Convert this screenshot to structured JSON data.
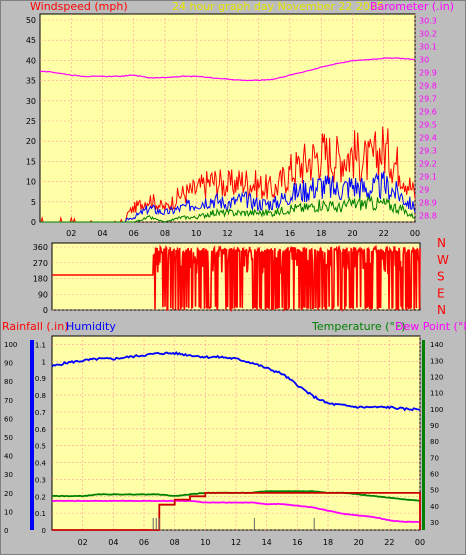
{
  "title": "24 hour graph day   November 22 2025",
  "colors": {
    "background": "#bdbdbd",
    "plot_bg": "#ffffa8",
    "grid": "#ff9a9a",
    "red": "#ff0000",
    "blue": "#0000ff",
    "green": "#008000",
    "magenta": "#ff00ff",
    "dark_red": "#cc0000",
    "title_color": "#e5e500"
  },
  "panels": {
    "wind": {
      "left_label": "Windspeed (mph)",
      "right_label": "Barometer (.in)",
      "left_ticks": [
        "0",
        "5",
        "10",
        "15",
        "20",
        "25",
        "30",
        "35",
        "40",
        "45",
        "50"
      ],
      "right_ticks": [
        "28.8",
        "28.9",
        "29",
        "29.1",
        "29.2",
        "29.3",
        "29.4",
        "29.5",
        "29.6",
        "29.7",
        "29.8",
        "29.9",
        "30",
        "30.1",
        "30.2",
        "30.3"
      ],
      "x_ticks": [
        "02",
        "04",
        "06",
        "08",
        "10",
        "12",
        "14",
        "16",
        "18",
        "20",
        "22",
        "00"
      ]
    },
    "direction": {
      "left_ticks": [
        "0",
        "90",
        "180",
        "270",
        "360"
      ],
      "compass": [
        "N",
        "W",
        "S",
        "E",
        "N"
      ]
    },
    "rain": {
      "left_label": "Rainfall (.in)",
      "mid_label": "Humidity",
      "right_label": "Temperature (°F)",
      "right_label2": "Dew Point (°F)",
      "humidity_ticks": [
        "0",
        "10",
        "20",
        "30",
        "40",
        "50",
        "60",
        "70",
        "80",
        "90",
        "100"
      ],
      "rain_ticks": [
        "0",
        "0.1",
        "0.2",
        "0.3",
        "0.4",
        "0.5",
        "0.6",
        "0.7",
        "0.8",
        "0.9",
        "1",
        "1.1"
      ],
      "temp_ticks": [
        "30",
        "40",
        "50",
        "60",
        "70",
        "80",
        "90",
        "100",
        "110",
        "120",
        "130",
        "140"
      ],
      "x_ticks": [
        "02",
        "04",
        "06",
        "08",
        "10",
        "12",
        "14",
        "16",
        "18",
        "20",
        "22",
        "00"
      ]
    }
  },
  "chart_data": [
    {
      "type": "line",
      "title": "24 hour graph day   November 22 2025",
      "xlabel": "",
      "ylabel": "Windspeed (mph)",
      "ylim": [
        0,
        50
      ],
      "y2label": "Barometer (.in)",
      "y2lim": [
        28.75,
        30.35
      ],
      "x_hours": [
        0,
        1,
        2,
        3,
        4,
        5,
        6,
        7,
        8,
        9,
        10,
        11,
        12,
        13,
        14,
        15,
        16,
        17,
        18,
        19,
        20,
        21,
        22,
        23,
        24
      ],
      "series": [
        {
          "name": "Windspeed (mph)",
          "role": "gust",
          "color": "#ff0000",
          "values": [
            1,
            1,
            1,
            0,
            1,
            0,
            3,
            5,
            3,
            6,
            7,
            9,
            8,
            9,
            8,
            7,
            11,
            13,
            15,
            14,
            15,
            13,
            16,
            12,
            6
          ]
        },
        {
          "name": "Windspeed (mph)",
          "role": "average",
          "color": "#0000ff",
          "values": [
            0,
            0,
            0,
            0,
            0,
            0,
            1,
            3,
            2,
            3,
            4,
            5,
            4,
            5,
            4,
            4,
            6,
            7,
            8,
            7,
            8,
            7,
            8,
            6,
            3
          ]
        },
        {
          "name": "Windspeed (mph)",
          "role": "lull",
          "color": "#008000",
          "values": [
            0,
            0,
            0,
            0,
            0,
            0,
            0,
            1,
            0,
            1,
            1,
            2,
            2,
            2,
            2,
            2,
            3,
            3,
            4,
            3,
            4,
            4,
            4,
            3,
            1
          ]
        },
        {
          "name": "Barometer (.in)",
          "color": "#ff00ff",
          "values": [
            29.91,
            29.9,
            29.88,
            29.87,
            29.87,
            29.87,
            29.88,
            29.86,
            29.86,
            29.87,
            29.87,
            29.86,
            29.85,
            29.84,
            29.84,
            29.85,
            29.88,
            29.91,
            29.94,
            29.97,
            29.99,
            30.0,
            30.01,
            30.01,
            30.0
          ]
        }
      ]
    },
    {
      "type": "scatter",
      "title": "",
      "ylabel": "",
      "ylim": [
        0,
        360
      ],
      "series": [
        {
          "name": "",
          "color": "#ff0000",
          "note_values_deg": "direction mostly 180 before 06, then highly variable 0-360",
          "values": [
            200,
            200,
            200,
            200,
            200,
            200,
            200,
            300,
            20,
            330,
            240,
            300,
            320,
            280,
            350,
            300,
            330,
            320,
            330,
            320,
            330,
            320,
            330,
            320,
            320
          ]
        }
      ]
    },
    {
      "type": "line",
      "title": "",
      "ylabel": "Rainfall (.in)",
      "ylim": [
        0,
        1.15
      ],
      "y2label": "Temperature (°F)",
      "y2lim": [
        25,
        145
      ],
      "series": [
        {
          "name": "Humidity",
          "color": "#0000ff",
          "axis": "humidity",
          "values": [
            88,
            90,
            91,
            92,
            92,
            93,
            94,
            95,
            95,
            94,
            93,
            93,
            92,
            90,
            87,
            84,
            78,
            72,
            68,
            67,
            66,
            66,
            66,
            65,
            65
          ]
        },
        {
          "name": "Rainfall (.in)",
          "color": "#cc0000",
          "axis": "rain",
          "values": [
            0,
            0,
            0,
            0,
            0,
            0,
            0,
            0.15,
            0.18,
            0.2,
            0.22,
            0.22,
            0.22,
            0.22,
            0.22,
            0.22,
            0.22,
            0.22,
            0.22,
            0.22,
            0.22,
            0.22,
            0.22,
            0.22,
            0
          ]
        },
        {
          "name": "Temperature (°F)",
          "color": "#008000",
          "axis": "temp",
          "values": [
            46,
            46,
            46,
            47,
            47,
            47,
            47,
            47,
            46,
            47,
            48,
            48,
            48,
            48,
            49,
            49,
            49,
            49,
            48,
            48,
            47,
            46,
            45,
            44,
            43
          ]
        },
        {
          "name": "Dew Point (°F)",
          "color": "#ff00ff",
          "axis": "temp",
          "values": [
            43,
            43,
            43,
            43,
            43,
            43,
            43,
            43,
            43,
            43,
            42,
            42,
            42,
            42,
            41,
            41,
            40,
            39,
            37,
            35,
            34,
            33,
            31,
            30,
            30
          ]
        }
      ]
    }
  ]
}
